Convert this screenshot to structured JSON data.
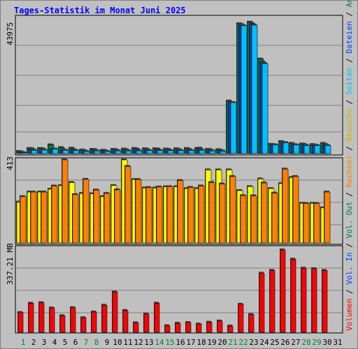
{
  "title": "Tages-Statistik im Monat Juni 2025",
  "colors": {
    "background": "#c0c0c0",
    "title": "#0000ff",
    "anfragen": "#008040",
    "dateien": "#0040ff",
    "seiten": "#00c0ff",
    "besuche": "#ffff00",
    "rechner": "#ff8000",
    "volumen": "#ff0000",
    "vol_in": "#ff0000",
    "vol_out": "#ff0000",
    "weekend_day": "#008040",
    "weekday": "#000000"
  },
  "chart_data": [
    {
      "type": "bar",
      "panel": "top",
      "categories": [
        "1",
        "2",
        "3",
        "4",
        "5",
        "6",
        "7",
        "8",
        "9",
        "10",
        "11",
        "12",
        "13",
        "14",
        "15",
        "16",
        "17",
        "18",
        "19",
        "20",
        "21",
        "22",
        "23",
        "24",
        "25",
        "26",
        "27",
        "28",
        "29",
        "30",
        "31"
      ],
      "y_tick_label": "43975",
      "ylim": [
        0,
        43975
      ],
      "right_axis_labels": [
        "Anfragen",
        "/",
        "Dateien",
        "/",
        "Seiten",
        "/"
      ],
      "series": [
        {
          "name": "Anfragen",
          "values": [
            700,
            1700,
            1700,
            2900,
            2000,
            1800,
            1200,
            1400,
            1100,
            1400,
            1500,
            1700,
            1600,
            1600,
            1500,
            1600,
            1700,
            1700,
            1400,
            1300,
            17500,
            43300,
            43800,
            31500,
            3100,
            4000,
            3400,
            3200,
            3000,
            3400,
            null
          ]
        },
        {
          "name": "Dateien",
          "values": [
            500,
            1600,
            1600,
            1500,
            1300,
            1300,
            1000,
            1300,
            900,
            1300,
            1300,
            1500,
            1400,
            1500,
            1400,
            1400,
            1400,
            1800,
            1300,
            1100,
            17000,
            43000,
            43300,
            30500,
            3000,
            3700,
            3000,
            3000,
            2800,
            3000,
            null
          ]
        },
        {
          "name": "Seiten",
          "values": [
            300,
            1100,
            1200,
            1500,
            1100,
            1000,
            700,
            900,
            700,
            900,
            900,
            900,
            1000,
            1000,
            1000,
            1000,
            1000,
            1100,
            900,
            800,
            17000,
            42600,
            42800,
            30000,
            2900,
            3600,
            2900,
            2700,
            2700,
            2700,
            null
          ]
        }
      ]
    },
    {
      "type": "bar",
      "panel": "middle",
      "categories": [
        "1",
        "2",
        "3",
        "4",
        "5",
        "6",
        "7",
        "8",
        "9",
        "10",
        "11",
        "12",
        "13",
        "14",
        "15",
        "16",
        "17",
        "18",
        "19",
        "20",
        "21",
        "22",
        "23",
        "24",
        "25",
        "26",
        "27",
        "28",
        "29",
        "30",
        "31"
      ],
      "y_tick_label": "413",
      "ylim": [
        0,
        413
      ],
      "right_axis_labels": [
        "Besuche",
        "/",
        "Rechner",
        "/",
        "Vol. Out",
        "/"
      ],
      "series": [
        {
          "name": "Besuche",
          "values": [
            203,
            253,
            253,
            267,
            285,
            300,
            246,
            244,
            230,
            285,
            413,
            315,
            273,
            273,
            279,
            279,
            270,
            270,
            363,
            363,
            363,
            260,
            280,
            318,
            270,
            295,
            325,
            197,
            197,
            174,
            null
          ]
        },
        {
          "name": "Rechner",
          "values": [
            230,
            253,
            253,
            283,
            413,
            240,
            316,
            263,
            246,
            264,
            380,
            315,
            275,
            278,
            280,
            310,
            276,
            283,
            300,
            293,
            330,
            235,
            234,
            298,
            248,
            367,
            330,
            196,
            196,
            253,
            null
          ]
        }
      ]
    },
    {
      "type": "bar",
      "panel": "bottom",
      "categories": [
        "1",
        "2",
        "3",
        "4",
        "5",
        "6",
        "7",
        "8",
        "9",
        "10",
        "11",
        "12",
        "13",
        "14",
        "15",
        "16",
        "17",
        "18",
        "19",
        "20",
        "21",
        "22",
        "23",
        "24",
        "25",
        "26",
        "27",
        "28",
        "29",
        "30",
        "31"
      ],
      "y_tick_label": "337.21 MB",
      "ylim": [
        0,
        337.21
      ],
      "right_axis_labels": [
        "Vol. In",
        "/",
        "Volumen"
      ],
      "series": [
        {
          "name": "Volumen",
          "values": [
            79,
            116,
            118,
            97,
            66,
            98,
            58,
            81,
            108,
            161,
            87,
            38,
            73,
            116,
            26,
            36,
            39,
            33,
            40,
            45,
            25,
            112,
            71,
            236,
            247,
            329,
            292,
            256,
            254,
            247,
            null
          ]
        }
      ]
    }
  ],
  "x_labels_weekend": [
    "1",
    "7",
    "8",
    "14",
    "15",
    "21",
    "22",
    "28",
    "29"
  ]
}
